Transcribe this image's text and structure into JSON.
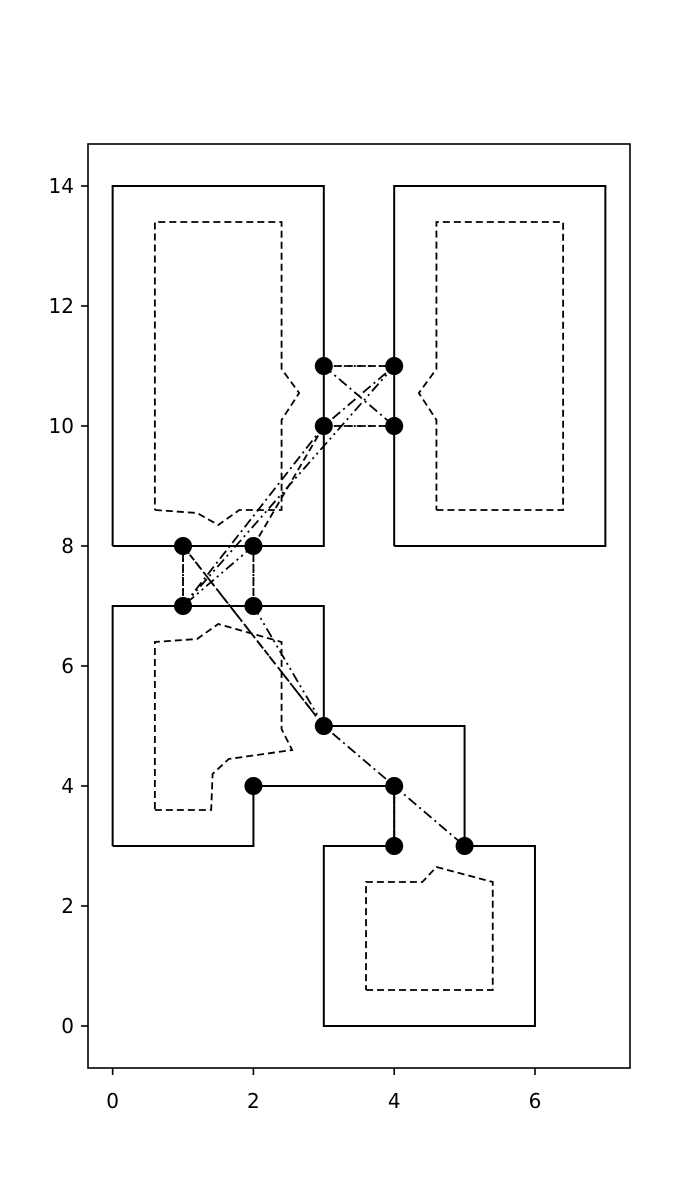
{
  "chart_data": {
    "type": "line",
    "title": "",
    "xlabel": "",
    "ylabel": "",
    "xlim": [
      -0.35,
      7.35
    ],
    "ylim": [
      -0.7,
      14.7
    ],
    "x_ticks": [
      0,
      2,
      4,
      6
    ],
    "y_ticks": [
      0,
      2,
      4,
      6,
      8,
      10,
      12,
      14
    ],
    "grid": false,
    "legend": "none",
    "colors": {
      "line": "#000000",
      "marker": "#000000",
      "background": "#ffffff"
    },
    "series": [
      {
        "role": "room-outline",
        "style": "solid",
        "polylines": [
          [
            [
              0,
              8
            ],
            [
              3,
              8
            ],
            [
              3,
              14
            ],
            [
              0,
              14
            ],
            [
              0,
              8
            ]
          ],
          [
            [
              4,
              8
            ],
            [
              7,
              8
            ],
            [
              7,
              14
            ],
            [
              4,
              14
            ],
            [
              4,
              8
            ]
          ],
          [
            [
              0,
              3
            ],
            [
              2,
              3
            ],
            [
              2,
              4
            ],
            [
              4,
              4
            ],
            [
              4,
              3
            ],
            [
              3,
              3
            ],
            [
              3,
              0
            ],
            [
              6,
              0
            ],
            [
              6,
              3
            ],
            [
              5,
              3
            ],
            [
              5,
              5
            ],
            [
              3,
              5
            ],
            [
              3,
              7
            ],
            [
              0,
              7
            ],
            [
              0,
              3
            ]
          ]
        ]
      },
      {
        "role": "inner-outline",
        "style": "dashed",
        "polylines": [
          [
            [
              0.6,
              8.6
            ],
            [
              1.2,
              8.55
            ],
            [
              1.5,
              8.35
            ],
            [
              1.8,
              8.6
            ],
            [
              2.4,
              8.6
            ],
            [
              2.4,
              10.1
            ],
            [
              2.65,
              10.55
            ],
            [
              2.4,
              10.95
            ],
            [
              2.4,
              13.4
            ],
            [
              0.6,
              13.4
            ],
            [
              0.6,
              8.6
            ]
          ],
          [
            [
              4.6,
              8.6
            ],
            [
              6.4,
              8.6
            ],
            [
              6.4,
              13.4
            ],
            [
              4.6,
              13.4
            ],
            [
              4.6,
              10.95
            ],
            [
              4.35,
              10.55
            ],
            [
              4.6,
              10.1
            ],
            [
              4.6,
              8.6
            ]
          ],
          [
            [
              0.6,
              3.6
            ],
            [
              1.4,
              3.6
            ],
            [
              1.42,
              4.2
            ],
            [
              1.65,
              4.45
            ],
            [
              2.55,
              4.6
            ],
            [
              2.4,
              4.95
            ],
            [
              2.4,
              6.4
            ],
            [
              1.5,
              6.7
            ],
            [
              1.2,
              6.45
            ],
            [
              0.6,
              6.4
            ],
            [
              0.6,
              3.6
            ]
          ],
          [
            [
              3.6,
              0.6
            ],
            [
              5.4,
              0.6
            ],
            [
              5.4,
              2.4
            ],
            [
              4.6,
              2.65
            ],
            [
              4.4,
              2.4
            ],
            [
              3.6,
              2.4
            ],
            [
              3.6,
              0.6
            ]
          ]
        ]
      },
      {
        "role": "connection",
        "style": "dotted",
        "polylines": [
          [
            [
              3,
              11
            ],
            [
              4,
              11
            ]
          ],
          [
            [
              3,
              10
            ],
            [
              4,
              10
            ]
          ],
          [
            [
              1,
              7
            ],
            [
              1,
              8
            ]
          ],
          [
            [
              2,
              7
            ],
            [
              2,
              8
            ]
          ],
          [
            [
              2,
              4
            ],
            [
              4,
              4
            ]
          ],
          [
            [
              4,
              4
            ],
            [
              4,
              3
            ]
          ]
        ]
      },
      {
        "role": "connection",
        "style": "dashed",
        "polylines": [
          [
            [
              3,
              11
            ],
            [
              4,
              11
            ]
          ],
          [
            [
              3,
              10
            ],
            [
              4,
              10
            ]
          ],
          [
            [
              1,
              7
            ],
            [
              1,
              8
            ]
          ],
          [
            [
              2,
              7
            ],
            [
              2,
              8
            ]
          ],
          [
            [
              2,
              4
            ],
            [
              4,
              4
            ]
          ],
          [
            [
              4,
              4
            ],
            [
              4,
              3
            ]
          ],
          [
            [
              1,
              8
            ],
            [
              3,
              5
            ]
          ],
          [
            [
              2,
              8
            ],
            [
              3,
              10
            ]
          ]
        ]
      },
      {
        "role": "route",
        "style": "dash-dot",
        "polylines": [
          [
            [
              1,
              7
            ],
            [
              3,
              10
            ],
            [
              4,
              11
            ]
          ],
          [
            [
              3,
              11
            ],
            [
              4,
              10
            ]
          ],
          [
            [
              1,
              8
            ],
            [
              3,
              5
            ],
            [
              5,
              3
            ]
          ]
        ]
      },
      {
        "role": "route",
        "style": "dash-dot-dot",
        "polylines": [
          [
            [
              1,
              7
            ],
            [
              4,
              11
            ]
          ],
          [
            [
              2,
              8
            ],
            [
              1,
              7
            ]
          ],
          [
            [
              2,
              7
            ],
            [
              3,
              5
            ]
          ],
          [
            [
              2,
              4
            ],
            [
              4,
              4
            ]
          ]
        ]
      },
      {
        "role": "node",
        "style": "marker",
        "points": [
          [
            3,
            11
          ],
          [
            4,
            11
          ],
          [
            3,
            10
          ],
          [
            4,
            10
          ],
          [
            1,
            8
          ],
          [
            2,
            8
          ],
          [
            1,
            7
          ],
          [
            2,
            7
          ],
          [
            3,
            5
          ],
          [
            2,
            4
          ],
          [
            4,
            4
          ],
          [
            4,
            3
          ],
          [
            5,
            3
          ]
        ]
      }
    ]
  }
}
